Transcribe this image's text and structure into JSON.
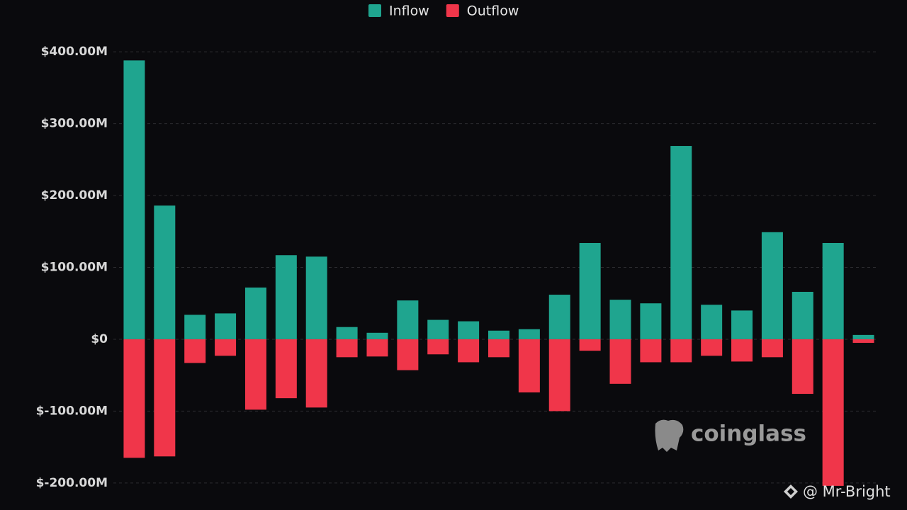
{
  "chart_data": {
    "type": "bar",
    "categories": [
      null,
      null,
      null,
      null,
      null,
      null,
      null,
      null,
      null,
      null,
      null,
      null,
      null,
      null,
      null,
      null,
      null,
      null,
      null,
      null,
      null,
      null,
      null,
      null,
      null
    ],
    "series": [
      {
        "name": "Inflow",
        "color": "#1fa58f",
        "values": [
          388,
          186,
          34,
          36,
          72,
          117,
          115,
          17,
          9,
          54,
          27,
          25,
          12,
          14,
          62,
          134,
          55,
          50,
          269,
          48,
          40,
          149,
          66,
          134,
          6
        ]
      },
      {
        "name": "Outflow",
        "color": "#f0364a",
        "values": [
          -165,
          -163,
          -33,
          -23,
          -98,
          -82,
          -95,
          -25,
          -24,
          -43,
          -21,
          -32,
          -25,
          -74,
          -100,
          -16,
          -62,
          -32,
          -32,
          -23,
          -31,
          -25,
          -76,
          -204,
          -5
        ]
      }
    ],
    "ylim": [
      -210,
      410
    ],
    "yticks": [
      {
        "value": -200,
        "label": "$-200.00M"
      },
      {
        "value": -100,
        "label": "$-100.00M"
      },
      {
        "value": 0,
        "label": "$0"
      },
      {
        "value": 100,
        "label": "$100.00M"
      },
      {
        "value": 200,
        "label": "$200.00M"
      },
      {
        "value": 300,
        "label": "$300.00M"
      },
      {
        "value": 400,
        "label": "$400.00M"
      }
    ],
    "grid": true,
    "legend": "top",
    "watermark": "coinglass",
    "credit": "@ Mr-Bright"
  }
}
